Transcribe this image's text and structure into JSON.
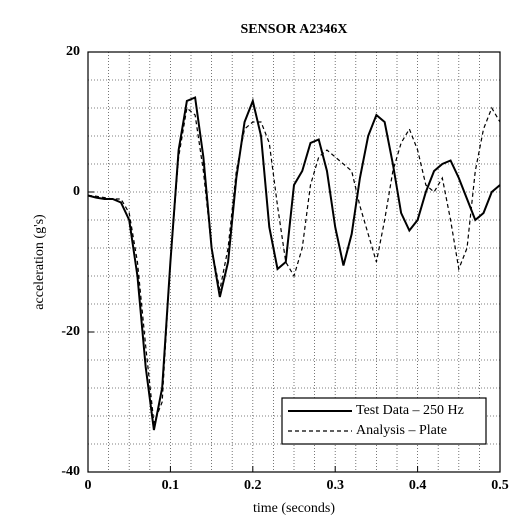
{
  "chart_data": {
    "type": "line",
    "title": "SENSOR A2346X",
    "x_label": "time (seconds)",
    "y_label": "acceleration (g's)",
    "x": [
      0,
      0.01,
      0.02,
      0.03,
      0.04,
      0.05,
      0.06,
      0.07,
      0.08,
      0.09,
      0.1,
      0.11,
      0.12,
      0.13,
      0.14,
      0.15,
      0.16,
      0.17,
      0.18,
      0.19,
      0.2,
      0.21,
      0.22,
      0.23,
      0.24,
      0.25,
      0.26,
      0.27,
      0.28,
      0.29,
      0.3,
      0.31,
      0.32,
      0.33,
      0.34,
      0.35,
      0.36,
      0.37,
      0.38,
      0.39,
      0.4,
      0.41,
      0.42,
      0.43,
      0.44,
      0.45,
      0.46,
      0.47,
      0.48,
      0.49,
      0.5
    ],
    "series": [
      {
        "name": "Test Data – 250 Hz",
        "color": "#000000",
        "dash": "solid",
        "values": [
          -0.5,
          -0.8,
          -1,
          -1,
          -1.5,
          -4,
          -12,
          -25,
          -34,
          -28,
          -10,
          6,
          13,
          13.5,
          5,
          -8,
          -15,
          -10,
          2,
          10,
          13,
          8,
          -5,
          -11,
          -10,
          1,
          3,
          7,
          7.5,
          3,
          -5,
          -10.5,
          -6,
          2,
          8,
          11,
          10,
          4,
          -3,
          -5.5,
          -4,
          0,
          3,
          4,
          4.5,
          2,
          -1,
          -4,
          -3,
          0,
          1
        ]
      },
      {
        "name": "Analysis – Plate",
        "color": "#000000",
        "dash": "dashed",
        "values": [
          -0.5,
          -0.6,
          -0.8,
          -1,
          -1,
          -3,
          -10,
          -22,
          -33,
          -30,
          -10,
          5,
          12,
          11,
          3,
          -8,
          -14,
          -8,
          3,
          9,
          10,
          10,
          7,
          -2,
          -10,
          -12,
          -8,
          1,
          5,
          6,
          5,
          4,
          3,
          -2,
          -6,
          -10,
          -4,
          3,
          7,
          9,
          6,
          1,
          0,
          2,
          -4,
          -11,
          -8,
          3,
          9,
          12,
          10
        ]
      }
    ],
    "xlim": [
      0,
      0.5
    ],
    "ylim": [
      -40,
      20
    ],
    "xticks": [
      0,
      0.1,
      0.2,
      0.3,
      0.4,
      0.5
    ],
    "yticks": [
      -40,
      -20,
      0,
      20
    ],
    "minor_xgrid": [
      0.025,
      0.05,
      0.075,
      0.125,
      0.15,
      0.175,
      0.225,
      0.25,
      0.275,
      0.325,
      0.35,
      0.375,
      0.425,
      0.45,
      0.475
    ],
    "minor_ygrid": [
      -36,
      -32,
      -28,
      -24,
      -16,
      -12,
      -8,
      -4,
      4,
      8,
      12,
      16
    ],
    "grid": true,
    "legend_position": "lower right"
  }
}
